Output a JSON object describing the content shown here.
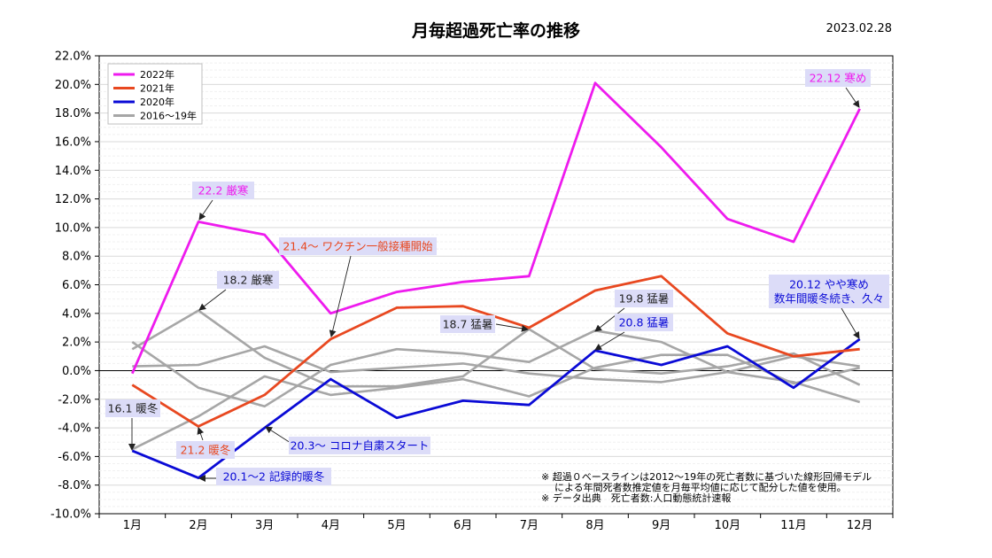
{
  "chart_data": {
    "type": "line",
    "title": "月毎超過死亡率の推移",
    "date": "2023.02.28",
    "categories": [
      "1月",
      "2月",
      "3月",
      "4月",
      "5月",
      "6月",
      "7月",
      "8月",
      "9月",
      "10月",
      "11月",
      "12月"
    ],
    "ylim": [
      -10,
      22
    ],
    "yticks": [
      -10,
      -8,
      -6,
      -4,
      -2,
      0,
      2,
      4,
      6,
      8,
      10,
      12,
      14,
      16,
      18,
      20,
      22
    ],
    "ytick_labels": [
      "-10.0%",
      "-8.0%",
      "-6.0%",
      "-4.0%",
      "-2.0%",
      "0.0%",
      "2.0%",
      "4.0%",
      "6.0%",
      "8.0%",
      "10.0%",
      "12.0%",
      "14.0%",
      "16.0%",
      "18.0%",
      "20.0%",
      "22.0%"
    ],
    "series": [
      {
        "name": "2016〜19年",
        "color": "#a6a6a6",
        "legend": true,
        "values": [
          2.0,
          -1.2,
          -2.5,
          0.4,
          1.5,
          1.2,
          0.6,
          2.8,
          2.0,
          -0.1,
          -0.8,
          -2.2
        ]
      },
      {
        "name": "2016〜19年",
        "color": "#a6a6a6",
        "legend": false,
        "values": [
          1.5,
          4.2,
          0.9,
          -1.1,
          -1.1,
          -0.4,
          2.9,
          0.1,
          -0.2,
          0.3,
          1.2,
          -1.0
        ]
      },
      {
        "name": "2016〜19年",
        "color": "#a6a6a6",
        "legend": false,
        "values": [
          0.3,
          0.4,
          1.7,
          -0.1,
          0.2,
          0.5,
          -0.2,
          -0.6,
          -0.8,
          -0.1,
          1.0,
          0.3
        ]
      },
      {
        "name": "2016〜19年",
        "color": "#a6a6a6",
        "legend": false,
        "values": [
          -5.5,
          -3.2,
          -0.4,
          -1.7,
          -1.2,
          -0.6,
          -1.8,
          0.2,
          1.1,
          1.1,
          -0.9,
          0.2
        ]
      },
      {
        "name": "2020年",
        "color": "#0a0ad6",
        "legend": true,
        "values": [
          -5.6,
          -7.5,
          -4.0,
          -0.6,
          -3.3,
          -2.1,
          -2.4,
          1.4,
          0.4,
          1.7,
          -1.2,
          2.2
        ]
      },
      {
        "name": "2021年",
        "color": "#e84820",
        "legend": true,
        "values": [
          -1.0,
          -3.9,
          -1.7,
          2.2,
          4.4,
          4.5,
          3.0,
          5.6,
          6.6,
          2.6,
          1.0,
          1.5
        ]
      },
      {
        "name": "2022年",
        "color": "#ee1bee",
        "legend": true,
        "values": [
          -0.2,
          10.4,
          9.5,
          4.0,
          5.5,
          6.2,
          6.6,
          20.1,
          15.6,
          10.6,
          9.0,
          18.3
        ]
      }
    ],
    "legend_order": [
      "2022年",
      "2021年",
      "2020年",
      "2016〜19年"
    ],
    "legend_colors": [
      "#ee1bee",
      "#e84820",
      "#0a0ad6",
      "#a6a6a6"
    ],
    "annotations": [
      {
        "lines": [
          "22.2 厳寒"
        ],
        "color": "#ee1bee"
      },
      {
        "lines": [
          "22.12 寒め"
        ],
        "color": "#ee1bee"
      },
      {
        "lines": [
          "21.4〜 ワクチン一般接種開始"
        ],
        "color": "#e84820"
      },
      {
        "lines": [
          "21.2 暖冬"
        ],
        "color": "#e84820"
      },
      {
        "lines": [
          "18.2 厳寒"
        ],
        "color": "#222222"
      },
      {
        "lines": [
          "18.7 猛暑"
        ],
        "color": "#222222"
      },
      {
        "lines": [
          "19.8 猛暑"
        ],
        "color": "#222222"
      },
      {
        "lines": [
          "16.1 暖冬"
        ],
        "color": "#222222"
      },
      {
        "lines": [
          "20.8 猛暑"
        ],
        "color": "#0a0ad6"
      },
      {
        "lines": [
          "20.12 やや寒め",
          "数年間暖冬続き、久々"
        ],
        "color": "#0a0ad6"
      },
      {
        "lines": [
          "20.3〜 コロナ自粛スタート"
        ],
        "color": "#0a0ad6"
      },
      {
        "lines": [
          "20.1〜2 記録的暖冬"
        ],
        "color": "#0a0ad6"
      }
    ],
    "notes": [
      "※ 超過０ベースラインは2012〜19年の死亡者数に基づいた線形回帰モデル",
      "による年間死者数推定値を月毎平均値に応じて配分した値を使用。",
      "※ データ出典　死亡者数:人口動態統計速報"
    ]
  }
}
